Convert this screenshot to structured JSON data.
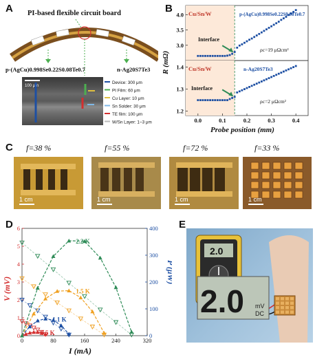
{
  "panels": {
    "A": {
      "letter": "A",
      "title": "PI-based flexible circuit board",
      "p_label": "p-(AgCu)0.998Se0.22S0.08Te0.7",
      "n_label": "n-Ag20S7Te3",
      "scale_label": "100 μm",
      "legend": [
        {
          "text": "Device: 300 μm",
          "color": "#1d4fa3"
        },
        {
          "text": "PI Film: 60 μm",
          "color": "#4caf50"
        },
        {
          "text": "Cu Layer: 10 μm",
          "color": "#e0c040"
        },
        {
          "text": "Sn Solder: 30 μm",
          "color": "#7fb8e8"
        },
        {
          "text": "TE film: 100 μm",
          "color": "#d32f2f"
        },
        {
          "text": "W/Sn Layer: 1~3 μm",
          "color": "#ffffff"
        }
      ]
    },
    "B": {
      "letter": "B",
      "ylabel": "R (mΩ)",
      "xlabel": "Probe position (mm)",
      "top": {
        "tag": "Cu/Sn/W",
        "material": "p-(AgCu)0.998Se0.22S0.08Te0.7",
        "interface": "Interface",
        "rho": "ρc=19 μΩcm²"
      },
      "bottom": {
        "tag": "Cu/Sn/W",
        "material": "n-Ag20S7Te3",
        "interface": "Interface",
        "rho": "ρc=2 μΩcm²"
      }
    },
    "C": {
      "letter": "C",
      "photos": [
        {
          "f": "f=38 %",
          "scale": "1 cm"
        },
        {
          "f": "f=55 %",
          "scale": "1 cm"
        },
        {
          "f": "f=72 %",
          "scale": "1 cm"
        },
        {
          "f": "f=33 %",
          "scale": "1 cm"
        }
      ]
    },
    "D": {
      "letter": "D",
      "ylabel_left": "V (mV)",
      "ylabel_right": "P (μW)",
      "xlabel": "I (mA)"
    },
    "E": {
      "letter": "E",
      "display_small": "2.0",
      "display_big": "2.0",
      "unit": "mV",
      "mode": "DC"
    }
  },
  "chart_data": [
    {
      "type": "scatter",
      "panel": "B-top",
      "xlabel": "Probe position (mm)",
      "ylabel": "R (mΩ)",
      "xlim": [
        -0.05,
        0.45
      ],
      "ylim": [
        2.5,
        4.3
      ],
      "yticks": [
        3.0,
        3.5,
        4.0
      ],
      "interface_x": 0.15,
      "series": [
        {
          "x": [
            0.0,
            0.01,
            0.02,
            0.03,
            0.04,
            0.05,
            0.06,
            0.07,
            0.08,
            0.09,
            0.1,
            0.11,
            0.12,
            0.13,
            0.14,
            0.15,
            0.16,
            0.17,
            0.18,
            0.19,
            0.2,
            0.21,
            0.22,
            0.23,
            0.24,
            0.25,
            0.26,
            0.27,
            0.28,
            0.29,
            0.3,
            0.31,
            0.32,
            0.33,
            0.34,
            0.35,
            0.36,
            0.37,
            0.38,
            0.39,
            0.4
          ],
          "y": [
            2.65,
            2.65,
            2.65,
            2.65,
            2.65,
            2.65,
            2.65,
            2.65,
            2.65,
            2.65,
            2.65,
            2.65,
            2.66,
            2.68,
            2.72,
            2.78,
            2.92,
            2.99,
            3.03,
            3.08,
            3.13,
            3.18,
            3.22,
            3.27,
            3.32,
            3.37,
            3.42,
            3.47,
            3.52,
            3.57,
            3.62,
            3.67,
            3.72,
            3.77,
            3.83,
            3.88,
            3.93,
            3.99,
            4.04,
            4.09,
            4.15
          ]
        }
      ]
    },
    {
      "type": "scatter",
      "panel": "B-bottom",
      "xlabel": "Probe position (mm)",
      "ylabel": "R (mΩ)",
      "xlim": [
        -0.05,
        0.45
      ],
      "xticks": [
        0.0,
        0.1,
        0.2,
        0.3,
        0.4
      ],
      "ylim": [
        1.18,
        1.43
      ],
      "yticks": [
        1.2,
        1.3,
        1.4
      ],
      "interface_x": 0.15,
      "series": [
        {
          "x": [
            0.0,
            0.01,
            0.02,
            0.03,
            0.04,
            0.05,
            0.06,
            0.07,
            0.08,
            0.09,
            0.1,
            0.11,
            0.12,
            0.13,
            0.14,
            0.15,
            0.16,
            0.17,
            0.18,
            0.19,
            0.2,
            0.21,
            0.22,
            0.23,
            0.24,
            0.25,
            0.26,
            0.27,
            0.28,
            0.29,
            0.3,
            0.31,
            0.32,
            0.33,
            0.34,
            0.35,
            0.36,
            0.37,
            0.38,
            0.39,
            0.4
          ],
          "y": [
            1.25,
            1.25,
            1.25,
            1.25,
            1.25,
            1.25,
            1.25,
            1.25,
            1.25,
            1.25,
            1.25,
            1.25,
            1.25,
            1.255,
            1.26,
            1.265,
            1.285,
            1.29,
            1.295,
            1.3,
            1.305,
            1.31,
            1.315,
            1.32,
            1.325,
            1.33,
            1.335,
            1.34,
            1.345,
            1.35,
            1.355,
            1.36,
            1.365,
            1.37,
            1.375,
            1.38,
            1.385,
            1.39,
            1.395,
            1.4,
            1.405
          ]
        }
      ]
    },
    {
      "type": "scatter",
      "panel": "D",
      "xlabel": "I (mA)",
      "ylabel": "V (mV)",
      "y2label": "P (μW)",
      "xlim": [
        0,
        320
      ],
      "xticks": [
        0,
        80,
        160,
        240,
        320
      ],
      "ylim": [
        0,
        6
      ],
      "yticks": [
        0,
        1,
        2,
        3,
        4,
        5,
        6
      ],
      "y2lim": [
        0,
        400
      ],
      "y2ticks": [
        0,
        100,
        200,
        300,
        400
      ],
      "series": [
        {
          "name": "0.5 K",
          "color": "#d32f2f",
          "V_I": [
            0,
            10,
            20,
            30,
            40,
            50,
            60
          ],
          "V": [
            0.8,
            0.68,
            0.56,
            0.44,
            0.33,
            0.2,
            0.08
          ],
          "P_I": [
            0,
            10,
            20,
            30,
            40,
            50,
            60
          ],
          "P": [
            0,
            6,
            11,
            13,
            13,
            10,
            5
          ]
        },
        {
          "name": "1.1 K",
          "color": "#1d4fa3",
          "V_I": [
            0,
            20,
            40,
            60,
            80,
            100,
            120
          ],
          "V": [
            2.0,
            1.7,
            1.4,
            1.05,
            0.72,
            0.38,
            0.05
          ],
          "P_I": [
            0,
            20,
            40,
            60,
            80,
            100,
            120
          ],
          "P": [
            0,
            34,
            56,
            63,
            58,
            38,
            6
          ]
        },
        {
          "name": "1.5 K",
          "color": "#f0a020",
          "V_I": [
            0,
            30,
            60,
            90,
            120,
            150,
            180,
            210
          ],
          "V": [
            3.2,
            2.75,
            2.3,
            1.85,
            1.4,
            0.95,
            0.5,
            0.05
          ],
          "P_I": [
            0,
            30,
            60,
            90,
            120,
            150,
            180,
            210
          ],
          "P": [
            0,
            82,
            138,
            166,
            168,
            142,
            90,
            10
          ]
        },
        {
          "name": "2.2 K",
          "color": "#2e8b57",
          "V_I": [
            0,
            40,
            80,
            120,
            160,
            200,
            240,
            280
          ],
          "V": [
            5.2,
            4.45,
            3.7,
            2.95,
            2.2,
            1.45,
            0.75,
            0.05
          ],
          "P_I": [
            0,
            40,
            80,
            120,
            160,
            200,
            240,
            280
          ],
          "P": [
            0,
            178,
            296,
            354,
            352,
            290,
            180,
            14
          ]
        }
      ]
    }
  ]
}
